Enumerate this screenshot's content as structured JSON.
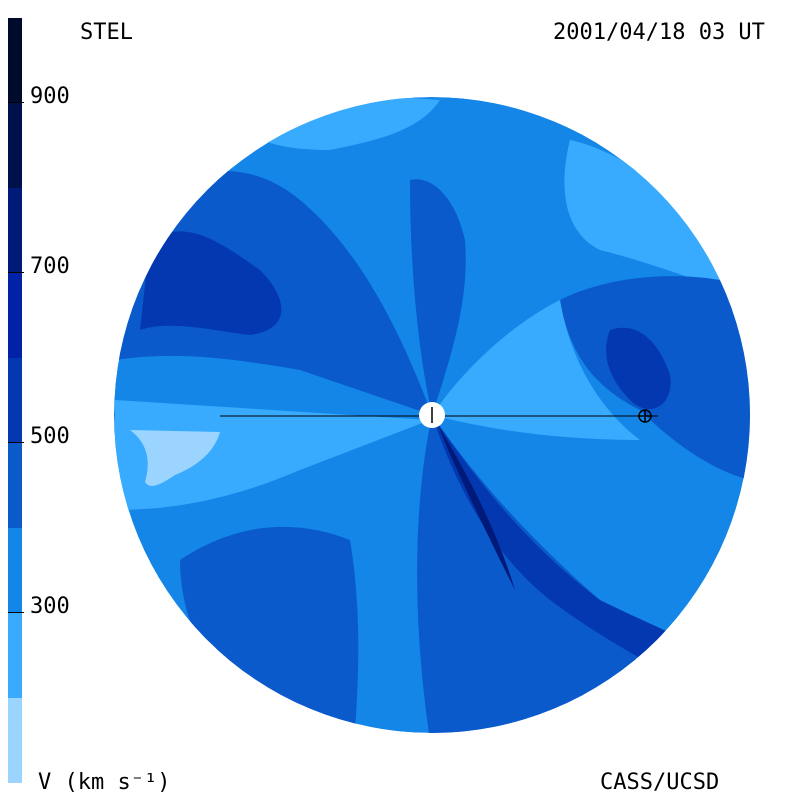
{
  "header": {
    "left_title": "STEL",
    "timestamp": "2001/04/18 03 UT"
  },
  "footer": {
    "units_label": "V (km s⁻¹)",
    "credit": "CASS/UCSD"
  },
  "colorbar": {
    "ticks": [
      "900",
      "700",
      "500",
      "300"
    ],
    "bins": [
      {
        "color": "#000a2a"
      },
      {
        "color": "#00104a"
      },
      {
        "color": "#001a7a"
      },
      {
        "color": "#0021a8"
      },
      {
        "color": "#0438b0"
      },
      {
        "color": "#0a5acc"
      },
      {
        "color": "#1386e8"
      },
      {
        "color": "#38abff"
      },
      {
        "color": "#9ad4ff"
      }
    ]
  },
  "map": {
    "type": "heliospheric-velocity-map",
    "symbols": [
      "sun-symbol",
      "earth-symbol"
    ]
  }
}
